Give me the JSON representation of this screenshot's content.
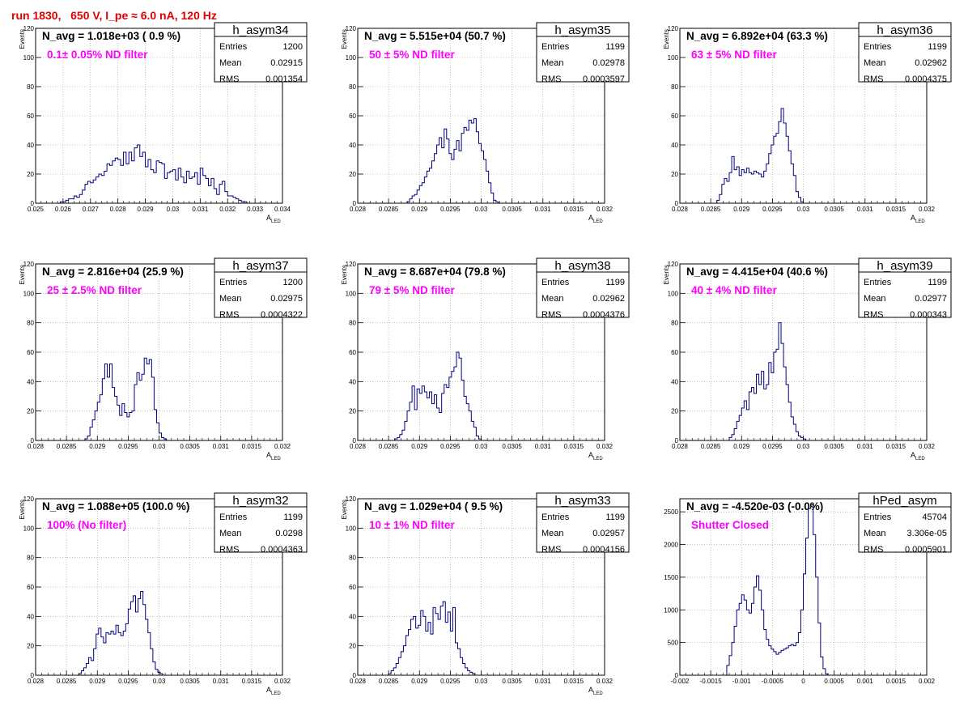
{
  "canvas_title": "run 1830,   650 V, I_pe ≈ 6.0 nA, 120 Hz",
  "colors": {
    "title": "#e00000",
    "annotation": "#ff00ff",
    "histogram_line": "#000080",
    "grid": "#999999",
    "text": "#000000"
  },
  "chart_data": [
    {
      "type": "bar",
      "name": "h_asym34",
      "avg_label": "N_avg = 1.018e+03 ( 0.9 %)",
      "annotation": "0.1± 0.05% ND filter",
      "stats": [
        [
          "Entries",
          "1200"
        ],
        [
          "Mean",
          "0.02915"
        ],
        [
          "RMS",
          "0.001354"
        ]
      ],
      "ylabel": "Events",
      "xlabel": "A",
      "xlabel_sub": "LED",
      "xlim": [
        0.025,
        0.034
      ],
      "ylim": [
        0,
        120
      ],
      "xticks": [
        0.025,
        0.026,
        0.027,
        0.028,
        0.029,
        0.03,
        0.031,
        0.032,
        0.033,
        0.034
      ],
      "xtick_labels": [
        "0.025",
        "0.026",
        "0.027",
        "0.028",
        "0.029",
        "0.03",
        "0.031",
        "0.032",
        "0.033",
        "0.034"
      ],
      "yticks": [
        0,
        20,
        40,
        60,
        80,
        100,
        120
      ],
      "bin_start": 0.0259,
      "bin_width": 0.0001,
      "values": [
        1,
        1,
        2,
        3,
        3,
        5,
        4,
        6,
        9,
        13,
        15,
        14,
        16,
        18,
        20,
        19,
        22,
        27,
        26,
        29,
        31,
        30,
        26,
        35,
        27,
        35,
        29,
        38,
        40,
        32,
        35,
        25,
        30,
        23,
        21,
        29,
        28,
        27,
        17,
        21,
        22,
        23,
        16,
        24,
        18,
        14,
        22,
        17,
        18,
        21,
        13,
        24,
        19,
        17,
        12,
        17,
        10,
        6,
        13,
        15,
        8,
        5,
        5,
        4,
        3,
        2,
        1,
        1,
        0
      ]
    },
    {
      "type": "bar",
      "name": "h_asym35",
      "avg_label": "N_avg = 5.515e+04 (50.7 %)",
      "annotation": "50 ± 5% ND filter",
      "stats": [
        [
          "Entries",
          "1199"
        ],
        [
          "Mean",
          "0.02978"
        ],
        [
          "RMS",
          "0.0003597"
        ]
      ],
      "ylabel": "Events",
      "xlabel": "A",
      "xlabel_sub": "LED",
      "xlim": [
        0.028,
        0.032
      ],
      "ylim": [
        0,
        120
      ],
      "xticks": [
        0.028,
        0.0285,
        0.029,
        0.0295,
        0.03,
        0.0305,
        0.031,
        0.0315,
        0.032
      ],
      "xtick_labels": [
        "0.028",
        "0.0285",
        "0.029",
        "0.0295",
        "0.03",
        "0.0305",
        "0.031",
        "0.0315",
        "0.032"
      ],
      "yticks": [
        0,
        20,
        40,
        60,
        80,
        100,
        120
      ],
      "bin_start": 0.0288,
      "bin_width": 4e-05,
      "values": [
        1,
        3,
        5,
        6,
        9,
        12,
        14,
        18,
        22,
        24,
        29,
        34,
        40,
        45,
        38,
        51,
        44,
        34,
        30,
        37,
        43,
        36,
        48,
        52,
        50,
        57,
        55,
        58,
        49,
        41,
        36,
        30,
        22,
        14,
        7,
        2,
        1,
        0
      ]
    },
    {
      "type": "bar",
      "name": "h_asym36",
      "avg_label": "N_avg = 6.892e+04 (63.3 %)",
      "annotation": "63 ± 5% ND filter",
      "stats": [
        [
          "Entries",
          "1199"
        ],
        [
          "Mean",
          "0.02962"
        ],
        [
          "RMS",
          "0.0004375"
        ]
      ],
      "ylabel": "Events",
      "xlabel": "A",
      "xlabel_sub": "LED",
      "xlim": [
        0.028,
        0.032
      ],
      "ylim": [
        0,
        120
      ],
      "xticks": [
        0.028,
        0.0285,
        0.029,
        0.0295,
        0.03,
        0.0305,
        0.031,
        0.0315,
        0.032
      ],
      "xtick_labels": [
        "0.028",
        "0.0285",
        "0.029",
        "0.0295",
        "0.03",
        "0.0305",
        "0.031",
        "0.0315",
        "0.032"
      ],
      "yticks": [
        0,
        20,
        40,
        60,
        80,
        100,
        120
      ],
      "bin_start": 0.0286,
      "bin_width": 4e-05,
      "values": [
        2,
        6,
        13,
        17,
        15,
        21,
        32,
        23,
        25,
        19,
        23,
        21,
        24,
        21,
        20,
        22,
        21,
        20,
        18,
        22,
        27,
        34,
        40,
        46,
        48,
        56,
        65,
        55,
        46,
        36,
        27,
        19,
        8,
        4,
        1,
        0
      ]
    },
    {
      "type": "bar",
      "name": "h_asym37",
      "avg_label": "N_avg = 2.816e+04 (25.9 %)",
      "annotation": "25 ± 2.5% ND filter",
      "stats": [
        [
          "Entries",
          "1200"
        ],
        [
          "Mean",
          "0.02975"
        ],
        [
          "RMS",
          "0.0004322"
        ]
      ],
      "ylabel": "Events",
      "xlabel": "A",
      "xlabel_sub": "LED",
      "xlim": [
        0.028,
        0.032
      ],
      "ylim": [
        0,
        120
      ],
      "xticks": [
        0.028,
        0.0285,
        0.029,
        0.0295,
        0.03,
        0.0305,
        0.031,
        0.0315,
        0.032
      ],
      "xtick_labels": [
        "0.028",
        "0.0285",
        "0.029",
        "0.0295",
        "0.03",
        "0.0305",
        "0.031",
        "0.0315",
        "0.032"
      ],
      "yticks": [
        0,
        20,
        40,
        60,
        80,
        100,
        120
      ],
      "bin_start": 0.0288,
      "bin_width": 4e-05,
      "values": [
        1,
        3,
        9,
        14,
        20,
        26,
        31,
        42,
        52,
        43,
        52,
        36,
        30,
        24,
        17,
        25,
        19,
        16,
        19,
        20,
        38,
        46,
        41,
        45,
        56,
        52,
        55,
        43,
        21,
        12,
        5,
        2,
        1,
        0
      ]
    },
    {
      "type": "bar",
      "name": "h_asym38",
      "avg_label": "N_avg = 8.687e+04 (79.8 %)",
      "annotation": "79 ± 5% ND filter",
      "stats": [
        [
          "Entries",
          "1199"
        ],
        [
          "Mean",
          "0.02962"
        ],
        [
          "RMS",
          "0.0004376"
        ]
      ],
      "ylabel": "Events",
      "xlabel": "A",
      "xlabel_sub": "LED",
      "xlim": [
        0.028,
        0.032
      ],
      "ylim": [
        0,
        120
      ],
      "xticks": [
        0.028,
        0.0285,
        0.029,
        0.0295,
        0.03,
        0.0305,
        0.031,
        0.0315,
        0.032
      ],
      "xtick_labels": [
        "0.028",
        "0.0285",
        "0.029",
        "0.0295",
        "0.03",
        "0.0305",
        "0.031",
        "0.0315",
        "0.032"
      ],
      "yticks": [
        0,
        20,
        40,
        60,
        80,
        100,
        120
      ],
      "bin_start": 0.0286,
      "bin_width": 4e-05,
      "values": [
        1,
        2,
        4,
        7,
        13,
        20,
        26,
        37,
        21,
        35,
        32,
        37,
        33,
        29,
        33,
        25,
        31,
        22,
        19,
        32,
        38,
        36,
        43,
        47,
        50,
        60,
        56,
        41,
        30,
        25,
        20,
        13,
        9,
        3,
        1,
        0
      ]
    },
    {
      "type": "bar",
      "name": "h_asym39",
      "avg_label": "N_avg = 4.415e+04 (40.6 %)",
      "annotation": "40 ± 4% ND filter",
      "stats": [
        [
          "Entries",
          "1199"
        ],
        [
          "Mean",
          "0.02977"
        ],
        [
          "RMS",
          "0.000343"
        ]
      ],
      "ylabel": "Events",
      "xlabel": "A",
      "xlabel_sub": "LED",
      "xlim": [
        0.028,
        0.032
      ],
      "ylim": [
        0,
        120
      ],
      "xticks": [
        0.028,
        0.0285,
        0.029,
        0.0295,
        0.03,
        0.0305,
        0.031,
        0.0315,
        0.032
      ],
      "xtick_labels": [
        "0.028",
        "0.0285",
        "0.029",
        "0.0295",
        "0.03",
        "0.0305",
        "0.031",
        "0.0315",
        "0.032"
      ],
      "yticks": [
        0,
        20,
        40,
        60,
        80,
        100,
        120
      ],
      "bin_start": 0.0288,
      "bin_width": 4e-05,
      "values": [
        2,
        4,
        8,
        13,
        17,
        22,
        27,
        21,
        33,
        36,
        32,
        45,
        38,
        47,
        35,
        38,
        53,
        46,
        60,
        62,
        80,
        66,
        50,
        38,
        26,
        16,
        11,
        6,
        3,
        2,
        1,
        0
      ]
    },
    {
      "type": "bar",
      "name": "h_asym32",
      "avg_label": "N_avg = 1.088e+05 (100.0 %)",
      "annotation": "100% (No filter)",
      "stats": [
        [
          "Entries",
          "1199"
        ],
        [
          "Mean",
          "0.0298"
        ],
        [
          "RMS",
          "0.0004363"
        ]
      ],
      "ylabel": "Events",
      "xlabel": "A",
      "xlabel_sub": "LED",
      "xlim": [
        0.028,
        0.032
      ],
      "ylim": [
        0,
        120
      ],
      "xticks": [
        0.028,
        0.0285,
        0.029,
        0.0295,
        0.03,
        0.0305,
        0.031,
        0.0315,
        0.032
      ],
      "xtick_labels": [
        "0.028",
        "0.0285",
        "0.029",
        "0.0295",
        "0.03",
        "0.0305",
        "0.031",
        "0.0315",
        "0.032"
      ],
      "yticks": [
        0,
        20,
        40,
        60,
        80,
        100,
        120
      ],
      "bin_start": 0.0287,
      "bin_width": 4e-05,
      "values": [
        1,
        3,
        5,
        8,
        12,
        10,
        18,
        28,
        32,
        26,
        22,
        29,
        28,
        30,
        28,
        34,
        29,
        27,
        30,
        35,
        45,
        50,
        54,
        43,
        52,
        57,
        48,
        38,
        29,
        18,
        9,
        4,
        2,
        1,
        0
      ]
    },
    {
      "type": "bar",
      "name": "h_asym33",
      "avg_label": "N_avg = 1.029e+04 ( 9.5 %)",
      "annotation": "10 ± 1% ND filter",
      "stats": [
        [
          "Entries",
          "1199"
        ],
        [
          "Mean",
          "0.02957"
        ],
        [
          "RMS",
          "0.0004156"
        ]
      ],
      "ylabel": "Events",
      "xlabel": "A",
      "xlabel_sub": "LED",
      "xlim": [
        0.028,
        0.032
      ],
      "ylim": [
        0,
        120
      ],
      "xticks": [
        0.028,
        0.0285,
        0.029,
        0.0295,
        0.03,
        0.0305,
        0.031,
        0.0315,
        0.032
      ],
      "xtick_labels": [
        "0.028",
        "0.0285",
        "0.029",
        "0.0295",
        "0.03",
        "0.0305",
        "0.031",
        "0.0315",
        "0.032"
      ],
      "yticks": [
        0,
        20,
        40,
        60,
        80,
        100,
        120
      ],
      "bin_start": 0.0285,
      "bin_width": 4e-05,
      "values": [
        1,
        3,
        5,
        8,
        12,
        16,
        20,
        27,
        31,
        38,
        40,
        32,
        34,
        44,
        40,
        30,
        36,
        28,
        46,
        42,
        38,
        47,
        50,
        36,
        43,
        30,
        46,
        22,
        18,
        12,
        8,
        5,
        3,
        2,
        1,
        0
      ]
    },
    {
      "type": "bar",
      "name": "hPed_asym",
      "avg_label": "N_avg = -4.520e-03 (-0.0%)",
      "annotation": "Shutter Closed",
      "stats": [
        [
          "Entries",
          "45704"
        ],
        [
          "Mean",
          "3.306e-05"
        ],
        [
          "RMS",
          "0.0005901"
        ]
      ],
      "ylabel": "",
      "xlabel": "",
      "xlabel_sub": "",
      "xlim": [
        -0.002,
        0.002
      ],
      "ylim": [
        0,
        2700
      ],
      "xticks": [
        -0.002,
        -0.0015,
        -0.001,
        -0.0005,
        0,
        0.0005,
        0.001,
        0.0015,
        0.002
      ],
      "xtick_labels": [
        "-0.002",
        "-0.0015",
        "-0.001",
        "-0.0005",
        "0",
        "0.0005",
        "0.001",
        "0.0015",
        "0.002"
      ],
      "yticks": [
        0,
        500,
        1000,
        1500,
        2000,
        2500
      ],
      "bin_start": -0.00124,
      "bin_width": 4e-05,
      "values": [
        150,
        300,
        500,
        750,
        1000,
        1100,
        1230,
        1150,
        1000,
        950,
        1100,
        1350,
        1520,
        1300,
        1000,
        700,
        550,
        450,
        400,
        360,
        320,
        350,
        380,
        400,
        420,
        450,
        470,
        450,
        500,
        650,
        1000,
        1550,
        2100,
        2550,
        2610,
        2150,
        1500,
        800,
        280,
        100,
        20
      ]
    }
  ]
}
